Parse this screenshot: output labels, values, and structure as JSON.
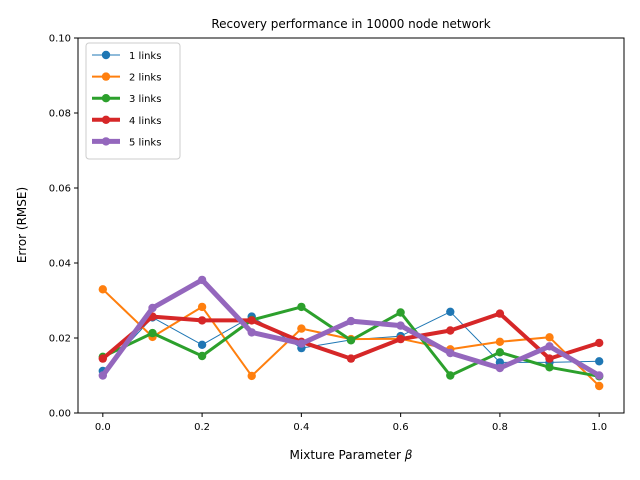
{
  "chart_data": {
    "type": "line",
    "title": "Recovery performance in 10000 node network",
    "xlabel": "Mixture Parameter",
    "xlabel_symbol": "β",
    "ylabel": "Error (RMSE)",
    "xlim": [
      -0.05,
      1.05
    ],
    "ylim": [
      0.0,
      0.1
    ],
    "xticks": [
      0.0,
      0.2,
      0.4,
      0.6,
      0.8,
      1.0
    ],
    "xtick_labels": [
      "0.0",
      "0.2",
      "0.4",
      "0.6",
      "0.8",
      "1.0"
    ],
    "yticks": [
      0.0,
      0.02,
      0.04,
      0.06,
      0.08,
      0.1
    ],
    "ytick_labels": [
      "0.00",
      "0.02",
      "0.04",
      "0.06",
      "0.08",
      "0.10"
    ],
    "grid": false,
    "legend_position": "top-left",
    "x": [
      0.0,
      0.1,
      0.2,
      0.3,
      0.4,
      0.5,
      0.6,
      0.7,
      0.8,
      0.9,
      1.0
    ],
    "series": [
      {
        "name": "1 links",
        "color": "#1f77b4",
        "values": [
          0.0112,
          0.0255,
          0.0182,
          0.0257,
          0.0173,
          0.0195,
          0.0205,
          0.027,
          0.0135,
          0.0135,
          0.0138
        ]
      },
      {
        "name": "2 links",
        "color": "#ff7f0e",
        "values": [
          0.033,
          0.0203,
          0.0283,
          0.0099,
          0.0225,
          0.0197,
          0.0198,
          0.017,
          0.019,
          0.0202,
          0.0072
        ]
      },
      {
        "name": "3 links",
        "color": "#2ca02c",
        "values": [
          0.015,
          0.0213,
          0.0152,
          0.0248,
          0.0283,
          0.0194,
          0.0268,
          0.01,
          0.0162,
          0.0122,
          0.0098
        ]
      },
      {
        "name": "4 links",
        "color": "#d62728",
        "values": [
          0.0145,
          0.0257,
          0.0247,
          0.0247,
          0.019,
          0.0145,
          0.0197,
          0.022,
          0.0265,
          0.0145,
          0.0187
        ]
      },
      {
        "name": "5 links",
        "color": "#9467bd",
        "values": [
          0.01,
          0.028,
          0.0355,
          0.0215,
          0.0185,
          0.0245,
          0.0233,
          0.016,
          0.012,
          0.0178,
          0.01
        ]
      }
    ]
  }
}
